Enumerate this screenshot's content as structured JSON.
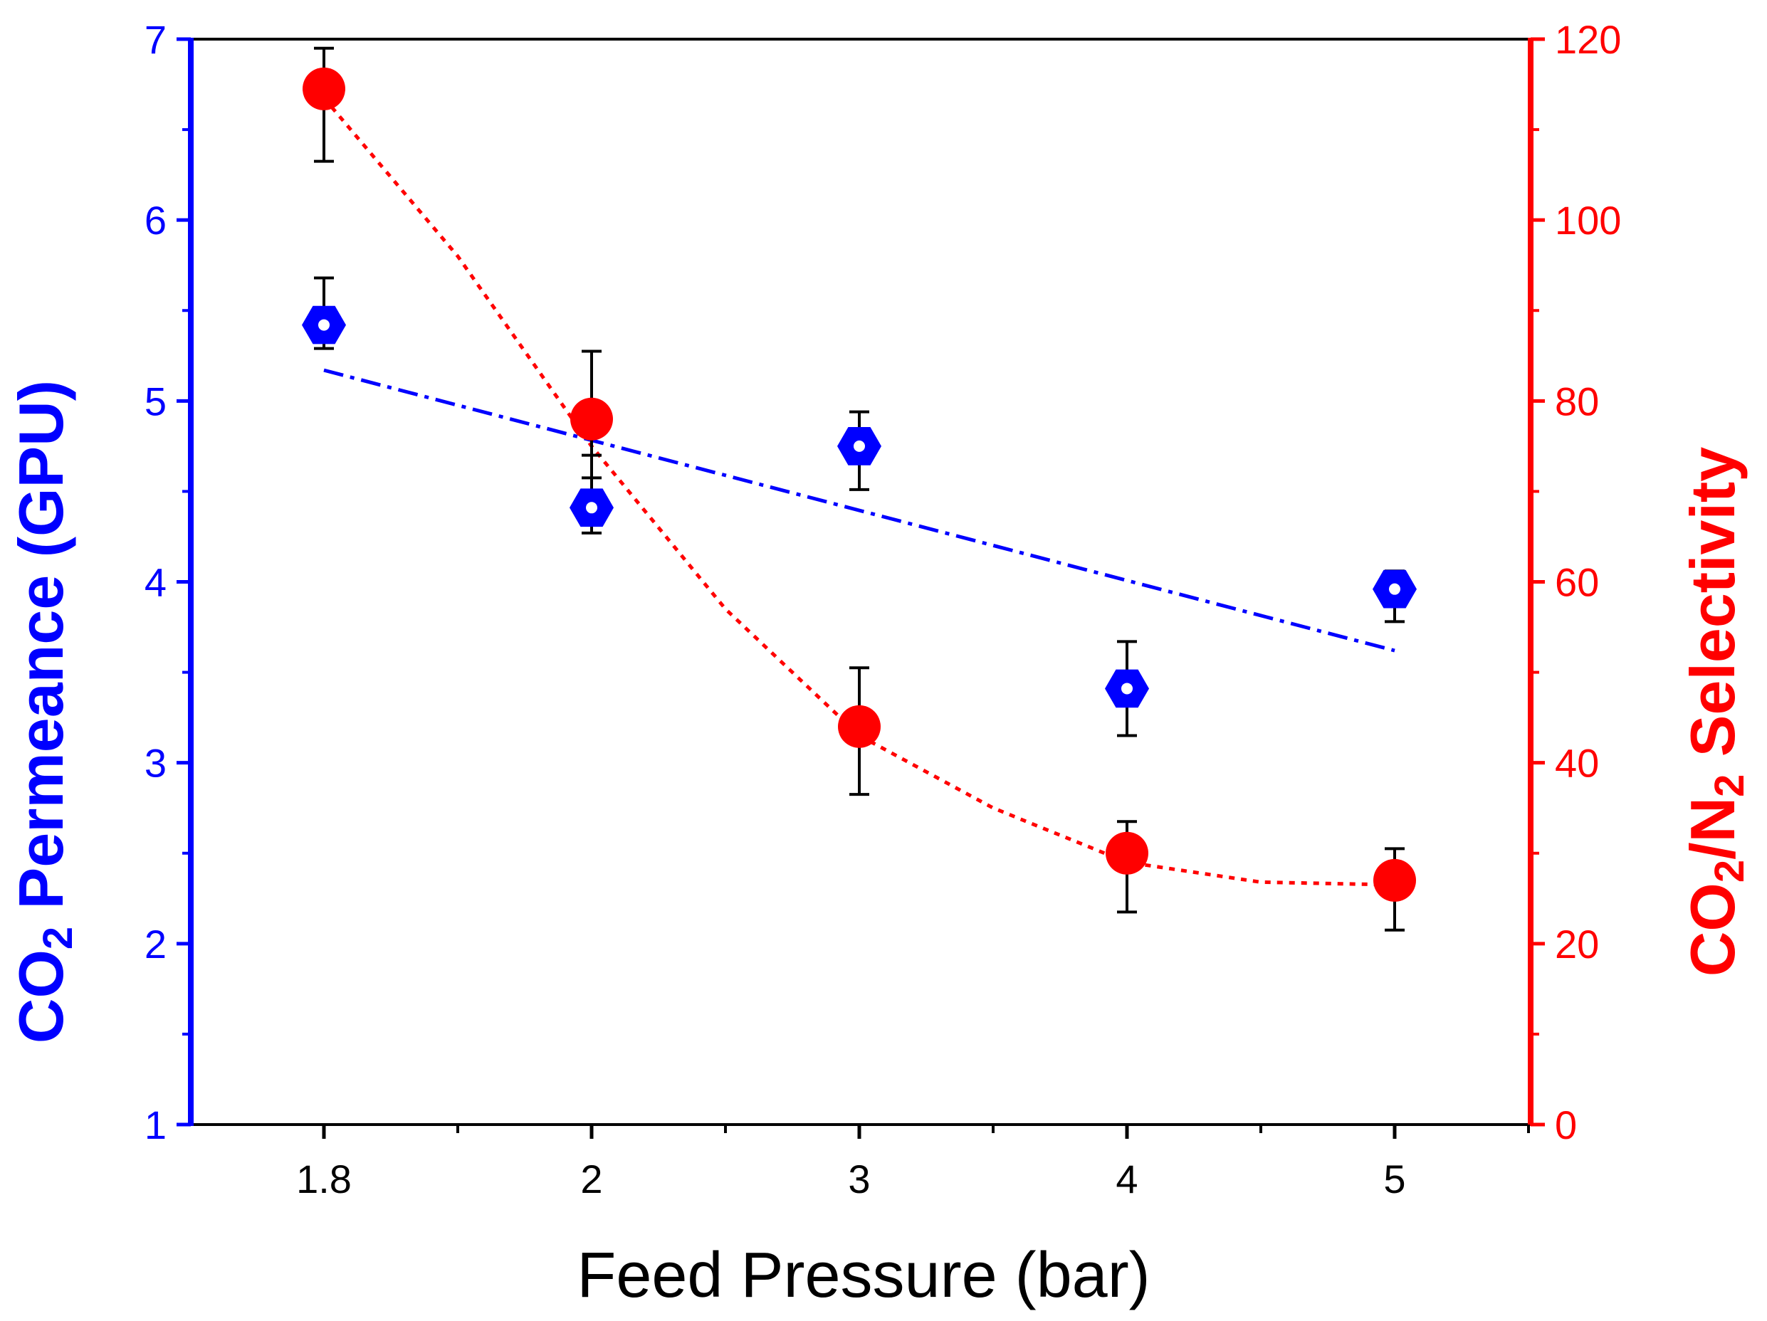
{
  "chart_data": {
    "type": "scatter",
    "x_categories": [
      "1.8",
      "2",
      "3",
      "4",
      "5"
    ],
    "xlabel": "Feed Pressure (bar)",
    "left_axis": {
      "label_parts": [
        "CO",
        "2",
        " Permeance (GPU)"
      ],
      "ylim": [
        1,
        7
      ],
      "ticks": [
        1,
        2,
        3,
        4,
        5,
        6,
        7
      ],
      "tick_labels": [
        "1",
        "2",
        "3",
        "4",
        "5",
        "6",
        "7"
      ],
      "color": "#0000ff"
    },
    "right_axis": {
      "label_parts": [
        "CO",
        "2",
        "/N",
        "2",
        " Selectivity"
      ],
      "ylim": [
        0,
        120
      ],
      "ticks": [
        0,
        20,
        40,
        60,
        80,
        100,
        120
      ],
      "tick_labels": [
        "0",
        "20",
        "40",
        "60",
        "80",
        "100",
        "120"
      ],
      "color": "#ff0000"
    },
    "series": [
      {
        "name": "CO2 Permeance",
        "axis": "left",
        "marker": "hexagon",
        "color": "#0000ff",
        "values": [
          5.42,
          4.41,
          4.75,
          3.41,
          3.96
        ],
        "err_low": [
          0.13,
          0.14,
          0.24,
          0.26,
          0.18
        ],
        "err_high": [
          0.26,
          0.29,
          0.19,
          0.26,
          0.1
        ],
        "fit": {
          "style": "dash-dot",
          "from": [
            0,
            5.17
          ],
          "to": [
            4,
            3.62
          ]
        }
      },
      {
        "name": "CO2/N2 Selectivity",
        "axis": "right",
        "marker": "circle",
        "color": "#ff0000",
        "values": [
          114.5,
          78,
          44,
          30,
          27
        ],
        "err_low": [
          8,
          6.5,
          7.5,
          6.5,
          5.5
        ],
        "err_high": [
          4.5,
          7.5,
          6.5,
          3.5,
          3.5
        ],
        "fit": {
          "style": "dotted",
          "points": [
            [
              0,
              113.5
            ],
            [
              0.5,
              96
            ],
            [
              1,
              75
            ],
            [
              1.5,
              57
            ],
            [
              2,
              43
            ],
            [
              2.5,
              35
            ],
            [
              3,
              29
            ],
            [
              3.5,
              26.8
            ],
            [
              4,
              26.5
            ]
          ]
        }
      }
    ]
  }
}
